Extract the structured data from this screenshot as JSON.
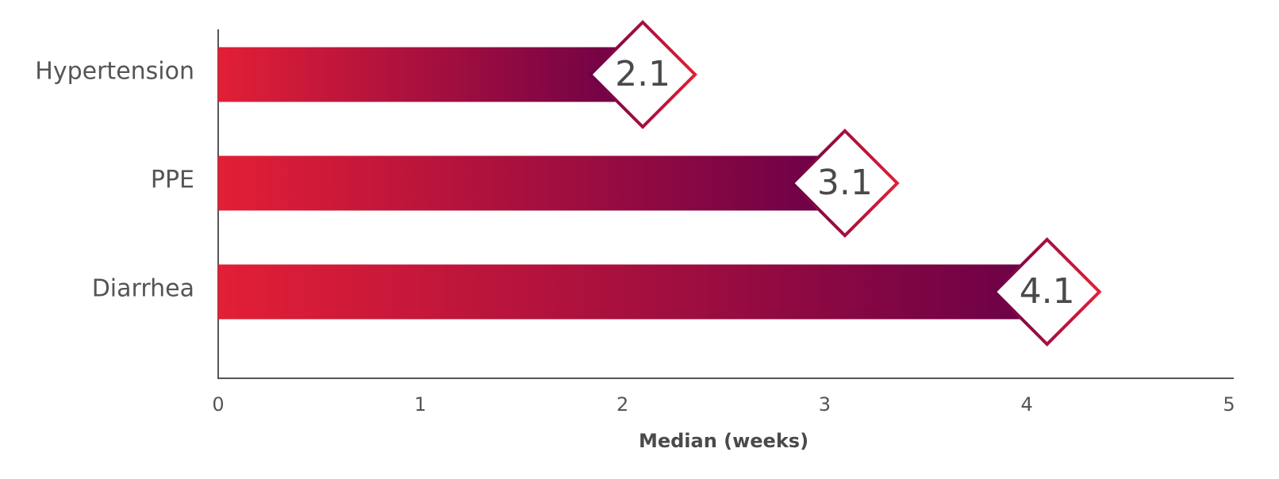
{
  "chart_data": {
    "type": "bar",
    "orientation": "horizontal",
    "categories": [
      "Hypertension",
      "PPE",
      "Diarrhea"
    ],
    "values": [
      2.1,
      3.1,
      4.1
    ],
    "x_label": "Median (weeks)",
    "xlim": [
      0,
      5
    ],
    "xticks": [
      0,
      1,
      2,
      3,
      4,
      5
    ],
    "colors": [
      "#e21f36",
      "#6a0047"
    ],
    "grid": false
  }
}
